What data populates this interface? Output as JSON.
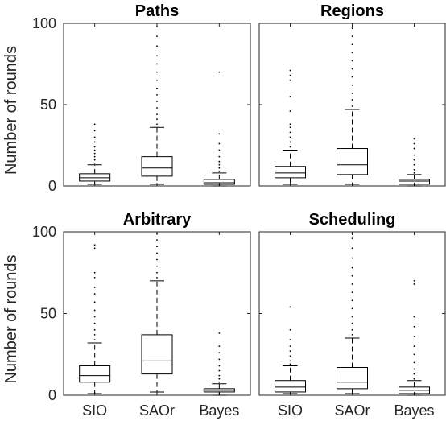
{
  "chart_data": [
    {
      "type": "box",
      "title": "Paths",
      "ylabel": "Number of rounds",
      "ylim": [
        0,
        100
      ],
      "yticks": [
        "0",
        "50",
        "100"
      ],
      "categories": [
        "SIO",
        "SAOr",
        "Bayes"
      ],
      "series": [
        {
          "q1": 3,
          "median": 5,
          "q3": 7.5,
          "whisker_low": 1,
          "whisker_high": 13,
          "outliers": [
            14,
            16,
            18,
            20,
            22,
            24,
            27,
            30,
            34,
            38
          ]
        },
        {
          "q1": 6,
          "median": 11,
          "q3": 18,
          "whisker_low": 1,
          "whisker_high": 36,
          "outliers": [
            38,
            41,
            44,
            48,
            52,
            56,
            60,
            65,
            70,
            75,
            80,
            86,
            92,
            98
          ]
        },
        {
          "q1": 1,
          "median": 2,
          "q3": 4,
          "whisker_low": 0,
          "whisker_high": 8,
          "outliers": [
            9,
            11,
            13,
            15,
            18,
            22,
            26,
            32,
            70
          ]
        }
      ]
    },
    {
      "type": "box",
      "title": "Regions",
      "ylabel": "",
      "ylim": [
        0,
        100
      ],
      "yticks": [],
      "categories": [
        "SIO",
        "SAOr",
        "Bayes"
      ],
      "series": [
        {
          "q1": 5,
          "median": 8,
          "q3": 12,
          "whisker_low": 1,
          "whisker_high": 22,
          "outliers": [
            24,
            27,
            30,
            33,
            36,
            38,
            46,
            55,
            65,
            68,
            71
          ]
        },
        {
          "q1": 7,
          "median": 13,
          "q3": 23,
          "whisker_low": 1,
          "whisker_high": 47,
          "outliers": [
            49,
            53,
            57,
            62,
            67,
            72,
            77,
            82,
            87,
            92,
            97
          ]
        },
        {
          "q1": 1,
          "median": 3,
          "q3": 4,
          "whisker_low": 0,
          "whisker_high": 7,
          "outliers": [
            8,
            10,
            13,
            16,
            19,
            23,
            26,
            29
          ]
        }
      ]
    },
    {
      "type": "box",
      "title": "Arbitrary",
      "ylabel": "Number of rounds",
      "ylim": [
        0,
        100
      ],
      "yticks": [
        "0",
        "50",
        "100"
      ],
      "categories": [
        "SIO",
        "SAOr",
        "Bayes"
      ],
      "series": [
        {
          "q1": 8,
          "median": 12,
          "q3": 18,
          "whisker_low": 1,
          "whisker_high": 32,
          "outliers": [
            34,
            37,
            40,
            44,
            48,
            52,
            57,
            62,
            66,
            72,
            75,
            90,
            92
          ]
        },
        {
          "q1": 13,
          "median": 21,
          "q3": 37,
          "whisker_low": 2,
          "whisker_high": 70,
          "outliers": [
            72,
            75,
            79,
            83,
            87,
            91,
            95,
            99
          ]
        },
        {
          "q1": 2,
          "median": 3,
          "q3": 4,
          "whisker_low": 0,
          "whisker_high": 7,
          "outliers": [
            8,
            10,
            12,
            15,
            18,
            22,
            26,
            30,
            38
          ]
        }
      ]
    },
    {
      "type": "box",
      "title": "Scheduling",
      "ylabel": "",
      "ylim": [
        0,
        100
      ],
      "yticks": [],
      "categories": [
        "SIO",
        "SAOr",
        "Bayes"
      ],
      "series": [
        {
          "q1": 2,
          "median": 5,
          "q3": 9,
          "whisker_low": 1,
          "whisker_high": 18,
          "outliers": [
            19,
            21,
            24,
            27,
            30,
            34,
            40,
            54
          ]
        },
        {
          "q1": 4,
          "median": 8,
          "q3": 17,
          "whisker_low": 1,
          "whisker_high": 35,
          "outliers": [
            37,
            40,
            44,
            48,
            53,
            58,
            63,
            68,
            73,
            78,
            84,
            90,
            96,
            99
          ]
        },
        {
          "q1": 1,
          "median": 3,
          "q3": 5,
          "whisker_low": 0,
          "whisker_high": 9,
          "outliers": [
            10,
            13,
            16,
            20,
            25,
            30,
            36,
            42,
            48,
            68,
            70
          ]
        }
      ]
    }
  ]
}
